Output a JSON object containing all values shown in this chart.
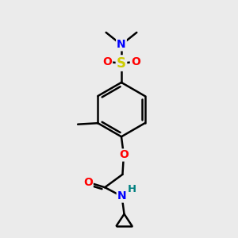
{
  "bg_color": "#ebebeb",
  "bond_color": "#000000",
  "atom_colors": {
    "N": "#0000ff",
    "O": "#ff0000",
    "S": "#cccc00",
    "H": "#008080",
    "C": "#000000"
  },
  "line_width": 1.8,
  "font_size_atoms": 10,
  "font_size_small": 8.5
}
